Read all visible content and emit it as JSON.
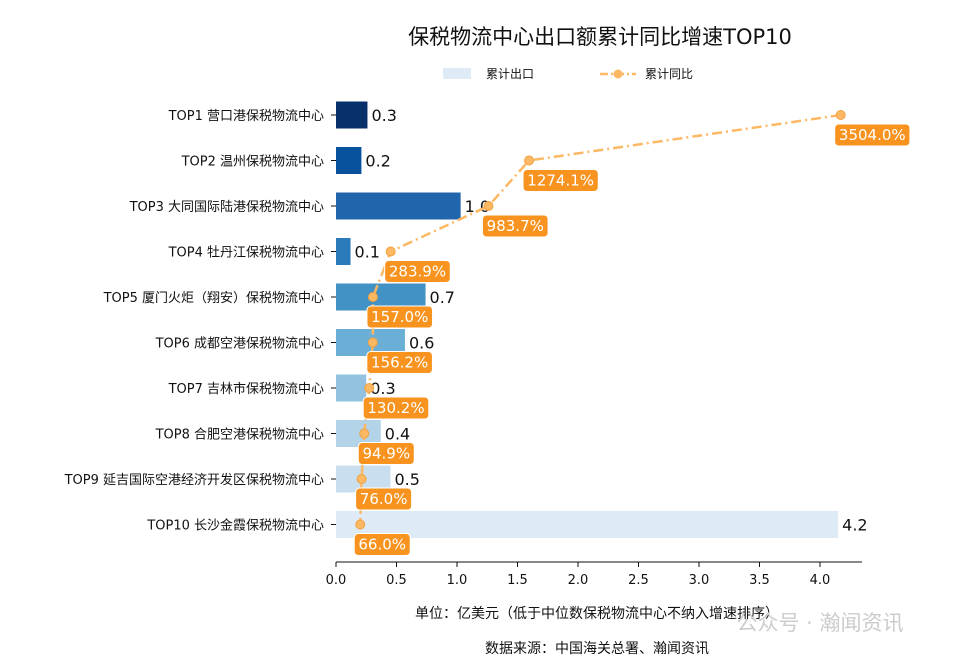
{
  "chart_data": {
    "type": "bar",
    "title": "保税物流中心出口额累计同比增速TOP10",
    "legend": {
      "bar_label": "累计出口",
      "line_label": "累计同比",
      "placement": "top-center"
    },
    "xlabel": "单位：亿美元（低于中位数保税物流中心不纳入增速排序）",
    "source": "数据来源：中国海关总署、瀚闻资讯",
    "watermark": "公众号 · 瀚闻资讯",
    "xlim": [
      0,
      4.35
    ],
    "xticks": [
      "0.0",
      "0.5",
      "1.0",
      "1.5",
      "2.0",
      "2.5",
      "3.0",
      "3.5",
      "4.0"
    ],
    "categories": [
      "TOP1 营口港保税物流中心",
      "TOP2 温州保税物流中心",
      "TOP3 大同国际陆港保税物流中心",
      "TOP4 牡丹江保税物流中心",
      "TOP5 厦门火炬（翔安）保税物流中心",
      "TOP6 成都空港保税物流中心",
      "TOP7 吉林市保税物流中心",
      "TOP8 合肥空港保税物流中心",
      "TOP9 延吉国际空港经济开发区保税物流中心",
      "TOP10 长沙金霞保税物流中心"
    ],
    "series": [
      {
        "name": "累计出口",
        "values": [
          0.26,
          0.21,
          1.03,
          0.12,
          0.74,
          0.57,
          0.25,
          0.37,
          0.45,
          4.15
        ],
        "labels": [
          "0.3",
          "0.2",
          "1.0",
          "0.1",
          "0.7",
          "0.6",
          "0.3",
          "0.4",
          "0.5",
          "4.2"
        ]
      },
      {
        "name": "累计同比",
        "values": [
          3504.0,
          1274.1,
          983.7,
          283.9,
          157.0,
          156.2,
          130.2,
          94.9,
          76.0,
          66.0
        ],
        "labels": [
          "3504.0%",
          "1274.1%",
          "983.7%",
          "283.9%",
          "157.0%",
          "156.2%",
          "130.2%",
          "94.9%",
          "76.0%",
          "66.0%"
        ]
      }
    ],
    "bar_colors": [
      "#08306b",
      "#08519c",
      "#2166ac",
      "#2b7bba",
      "#4292c6",
      "#6baed6",
      "#92c2df",
      "#b3d3e8",
      "#c9dff0",
      "#deebf7"
    ],
    "line_color": "#fdb863",
    "label_bg": "#f7931e"
  }
}
